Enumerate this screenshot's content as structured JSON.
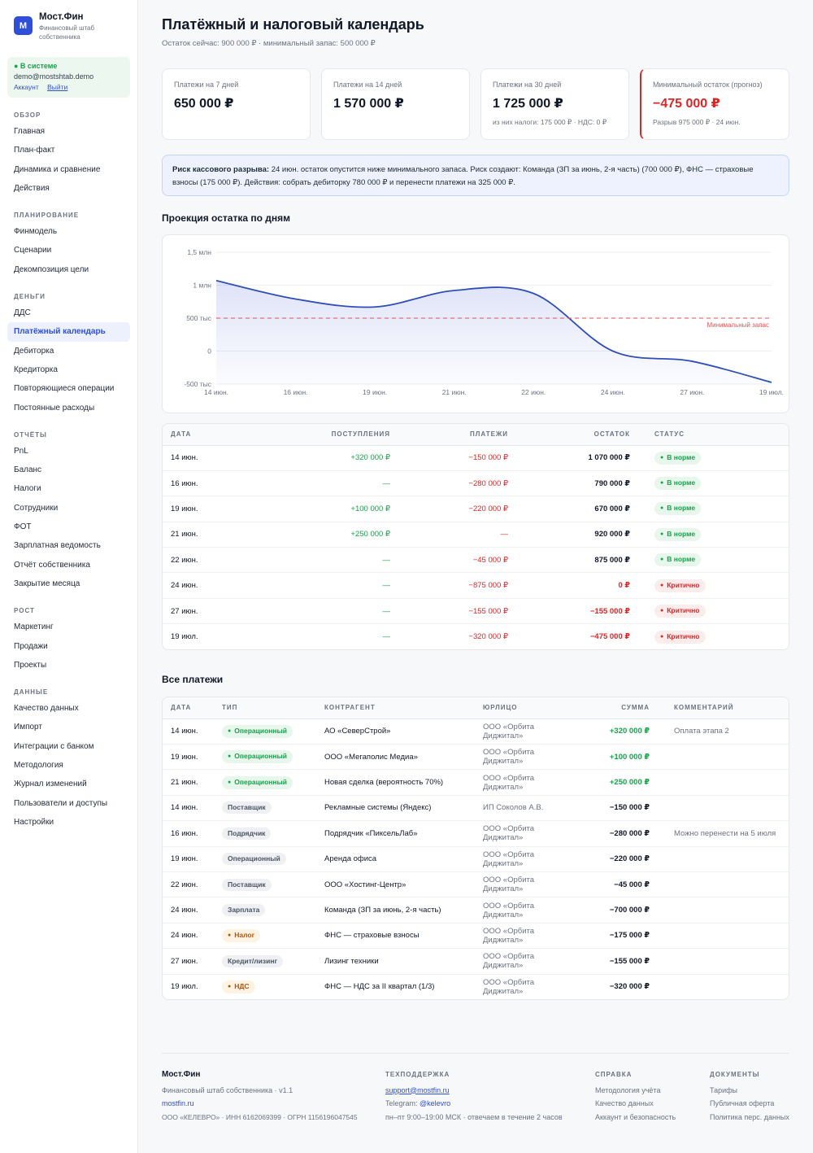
{
  "brand": {
    "logo": "М",
    "name": "Мост.Фин",
    "subtitle": "Финансовый штаб собственника"
  },
  "user": {
    "status": "● В системе",
    "email": "demo@mostshtab.demo",
    "account_link": "Аккаунт",
    "logout_link": "Выйти"
  },
  "nav": [
    {
      "title": "ОБЗОР",
      "items": [
        "Главная",
        "План-факт",
        "Динамика и сравнение",
        "Действия"
      ]
    },
    {
      "title": "ПЛАНИРОВАНИЕ",
      "items": [
        "Финмодель",
        "Сценарии",
        "Декомпозиция цели"
      ]
    },
    {
      "title": "ДЕНЬГИ",
      "items": [
        "ДДС",
        "Платёжный календарь",
        "Дебиторка",
        "Кредиторка",
        "Повторяющиеся операции",
        "Постоянные расходы"
      ],
      "active": 1
    },
    {
      "title": "ОТЧЁТЫ",
      "items": [
        "PnL",
        "Баланс",
        "Налоги",
        "Сотрудники",
        "ФОТ",
        "Зарплатная ведомость",
        "Отчёт собственника",
        "Закрытие месяца"
      ]
    },
    {
      "title": "РОСТ",
      "items": [
        "Маркетинг",
        "Продажи",
        "Проекты"
      ]
    },
    {
      "title": "ДАННЫЕ",
      "items": [
        "Качество данных",
        "Импорт",
        "Интеграции с банком",
        "Методология",
        "Журнал изменений",
        "Пользователи и доступы",
        "Настройки"
      ]
    }
  ],
  "page": {
    "title": "Платёжный и налоговый календарь",
    "subtitle": "Остаток сейчас: 900 000 ₽ · минимальный запас: 500 000 ₽"
  },
  "kpis": [
    {
      "label": "Платежи на 7 дней",
      "value": "650 000 ₽",
      "sub": ""
    },
    {
      "label": "Платежи на 14 дней",
      "value": "1 570 000 ₽",
      "sub": ""
    },
    {
      "label": "Платежи на 30 дней",
      "value": "1 725 000 ₽",
      "sub": "из них налоги: 175 000 ₽ · НДС: 0 ₽"
    },
    {
      "label": "Минимальный остаток (прогноз)",
      "value": "−475 000 ₽",
      "sub": "Разрыв 975 000 ₽ · 24 июн."
    }
  ],
  "alert": {
    "title": "Риск кассового разрыва:",
    "text": " 24 июн. остаток опустится ниже минимального запаса. Риск создают: Команда (ЗП за июнь, 2-я часть) (700 000 ₽), ФНС — страховые взносы (175 000 ₽). Действия: собрать дебиторку 780 000 ₽ и перенести платежи на 325 000 ₽."
  },
  "chart_section_title": "Проекция остатка по дням",
  "chart_data": {
    "type": "line",
    "x": [
      "14 июн.",
      "16 июн.",
      "19 июн.",
      "21 июн.",
      "22 июн.",
      "24 июн.",
      "27 июн.",
      "19 июл."
    ],
    "series": [
      {
        "values": [
          1070000,
          790000,
          670000,
          920000,
          875000,
          0,
          -155000,
          -475000
        ]
      }
    ],
    "ylim": [
      -500000,
      1500000
    ],
    "yticks": [
      -500000,
      0,
      500000,
      1000000,
      1500000
    ],
    "ytick_labels": [
      "-500 тыс",
      "0",
      "500 тыс",
      "1 млн",
      "1,5 млн"
    ],
    "threshold": {
      "value": 500000,
      "label": "Минимальный запас"
    },
    "grid": true,
    "colors": {
      "line": "#2f4fb8",
      "threshold": "#e05252"
    }
  },
  "projection_table": {
    "headers": [
      "ДАТА",
      "ПОСТУПЛЕНИЯ",
      "ПЛАТЕЖИ",
      "ОСТАТОК",
      "СТАТУС"
    ],
    "rows": [
      {
        "date": "14 июн.",
        "in": "+320 000 ₽",
        "out": "−150 000 ₽",
        "balance": "1 070 000 ₽",
        "status": "В норме",
        "crit": false
      },
      {
        "date": "16 июн.",
        "in": "—",
        "out": "−280 000 ₽",
        "balance": "790 000 ₽",
        "status": "В норме",
        "crit": false
      },
      {
        "date": "19 июн.",
        "in": "+100 000 ₽",
        "out": "−220 000 ₽",
        "balance": "670 000 ₽",
        "status": "В норме",
        "crit": false
      },
      {
        "date": "21 июн.",
        "in": "+250 000 ₽",
        "out": "—",
        "balance": "920 000 ₽",
        "status": "В норме",
        "crit": false
      },
      {
        "date": "22 июн.",
        "in": "—",
        "out": "−45 000 ₽",
        "balance": "875 000 ₽",
        "status": "В норме",
        "crit": false
      },
      {
        "date": "24 июн.",
        "in": "—",
        "out": "−875 000 ₽",
        "balance": "0 ₽",
        "status": "Критично",
        "crit": true
      },
      {
        "date": "27 июн.",
        "in": "—",
        "out": "−155 000 ₽",
        "balance": "−155 000 ₽",
        "status": "Критично",
        "crit": true
      },
      {
        "date": "19 июл.",
        "in": "—",
        "out": "−320 000 ₽",
        "balance": "−475 000 ₽",
        "status": "Критично",
        "crit": true
      }
    ]
  },
  "payments_section_title": "Все платежи",
  "payments_table": {
    "headers": [
      "ДАТА",
      "ТИП",
      "КОНТРАГЕНТ",
      "ЮРЛИЦО",
      "СУММА",
      "КОММЕНТАРИЙ"
    ],
    "rows": [
      {
        "date": "14 июн.",
        "type": "Операционный",
        "kind": "ok",
        "dot": true,
        "party": "АО «СеверСтрой»",
        "entity": "ООО «Орбита Диджитал»",
        "sum": "+320 000 ₽",
        "pos": true,
        "comment": "Оплата этапа 2"
      },
      {
        "date": "19 июн.",
        "type": "Операционный",
        "kind": "ok",
        "dot": true,
        "party": "ООО «Мегаполис Медиа»",
        "entity": "ООО «Орбита Диджитал»",
        "sum": "+100 000 ₽",
        "pos": true,
        "comment": ""
      },
      {
        "date": "21 июн.",
        "type": "Операционный",
        "kind": "ok",
        "dot": true,
        "party": "Новая сделка (вероятность 70%)",
        "entity": "ООО «Орбита Диджитал»",
        "sum": "+250 000 ₽",
        "pos": true,
        "comment": ""
      },
      {
        "date": "14 июн.",
        "type": "Поставщик",
        "kind": "gray",
        "dot": false,
        "party": "Рекламные системы (Яндекс)",
        "entity": "ИП Соколов А.В.",
        "sum": "−150 000 ₽",
        "pos": false,
        "comment": ""
      },
      {
        "date": "16 июн.",
        "type": "Подрядчик",
        "kind": "gray",
        "dot": false,
        "party": "Подрядчик «ПиксельЛаб»",
        "entity": "ООО «Орбита Диджитал»",
        "sum": "−280 000 ₽",
        "pos": false,
        "comment": "Можно перенести на 5 июля"
      },
      {
        "date": "19 июн.",
        "type": "Операционный",
        "kind": "gray",
        "dot": false,
        "party": "Аренда офиса",
        "entity": "ООО «Орбита Диджитал»",
        "sum": "−220 000 ₽",
        "pos": false,
        "comment": ""
      },
      {
        "date": "22 июн.",
        "type": "Поставщик",
        "kind": "gray",
        "dot": false,
        "party": "ООО «Хостинг-Центр»",
        "entity": "ООО «Орбита Диджитал»",
        "sum": "−45 000 ₽",
        "pos": false,
        "comment": ""
      },
      {
        "date": "24 июн.",
        "type": "Зарплата",
        "kind": "gray",
        "dot": false,
        "party": "Команда (ЗП за июнь, 2-я часть)",
        "entity": "ООО «Орбита Диджитал»",
        "sum": "−700 000 ₽",
        "pos": false,
        "comment": ""
      },
      {
        "date": "24 июн.",
        "type": "Налог",
        "kind": "warn",
        "dot": true,
        "party": "ФНС — страховые взносы",
        "entity": "ООО «Орбита Диджитал»",
        "sum": "−175 000 ₽",
        "pos": false,
        "comment": ""
      },
      {
        "date": "27 июн.",
        "type": "Кредит/лизинг",
        "kind": "gray",
        "dot": false,
        "party": "Лизинг техники",
        "entity": "ООО «Орбита Диджитал»",
        "sum": "−155 000 ₽",
        "pos": false,
        "comment": ""
      },
      {
        "date": "19 июл.",
        "type": "НДС",
        "kind": "warn",
        "dot": true,
        "party": "ФНС — НДС за II квартал (1/3)",
        "entity": "ООО «Орбита Диджитал»",
        "sum": "−320 000 ₽",
        "pos": false,
        "comment": ""
      }
    ]
  },
  "footer": {
    "brand": "Мост.Фин",
    "tagline": "Финансовый штаб собственника · v1.1",
    "site": "mostfin.ru",
    "legal": "ООО «КЕЛЕВРО» · ИНН 6162069399 · ОГРН 1156196047545",
    "support_title": "ТЕХПОДДЕРЖКА",
    "support_email": "support@mostfin.ru",
    "telegram_label": "Telegram: ",
    "telegram": "@kelevro",
    "hours": "пн–пт 9:00–19:00 МСК · отвечаем в течение 2 часов",
    "help_title": "СПРАВКА",
    "help_links": [
      "Методология учёта",
      "Качество данных",
      "Аккаунт и безопасность"
    ],
    "docs_title": "ДОКУМЕНТЫ",
    "docs_links": [
      "Тарифы",
      "Публичная оферта",
      "Политика перс. данных"
    ]
  }
}
